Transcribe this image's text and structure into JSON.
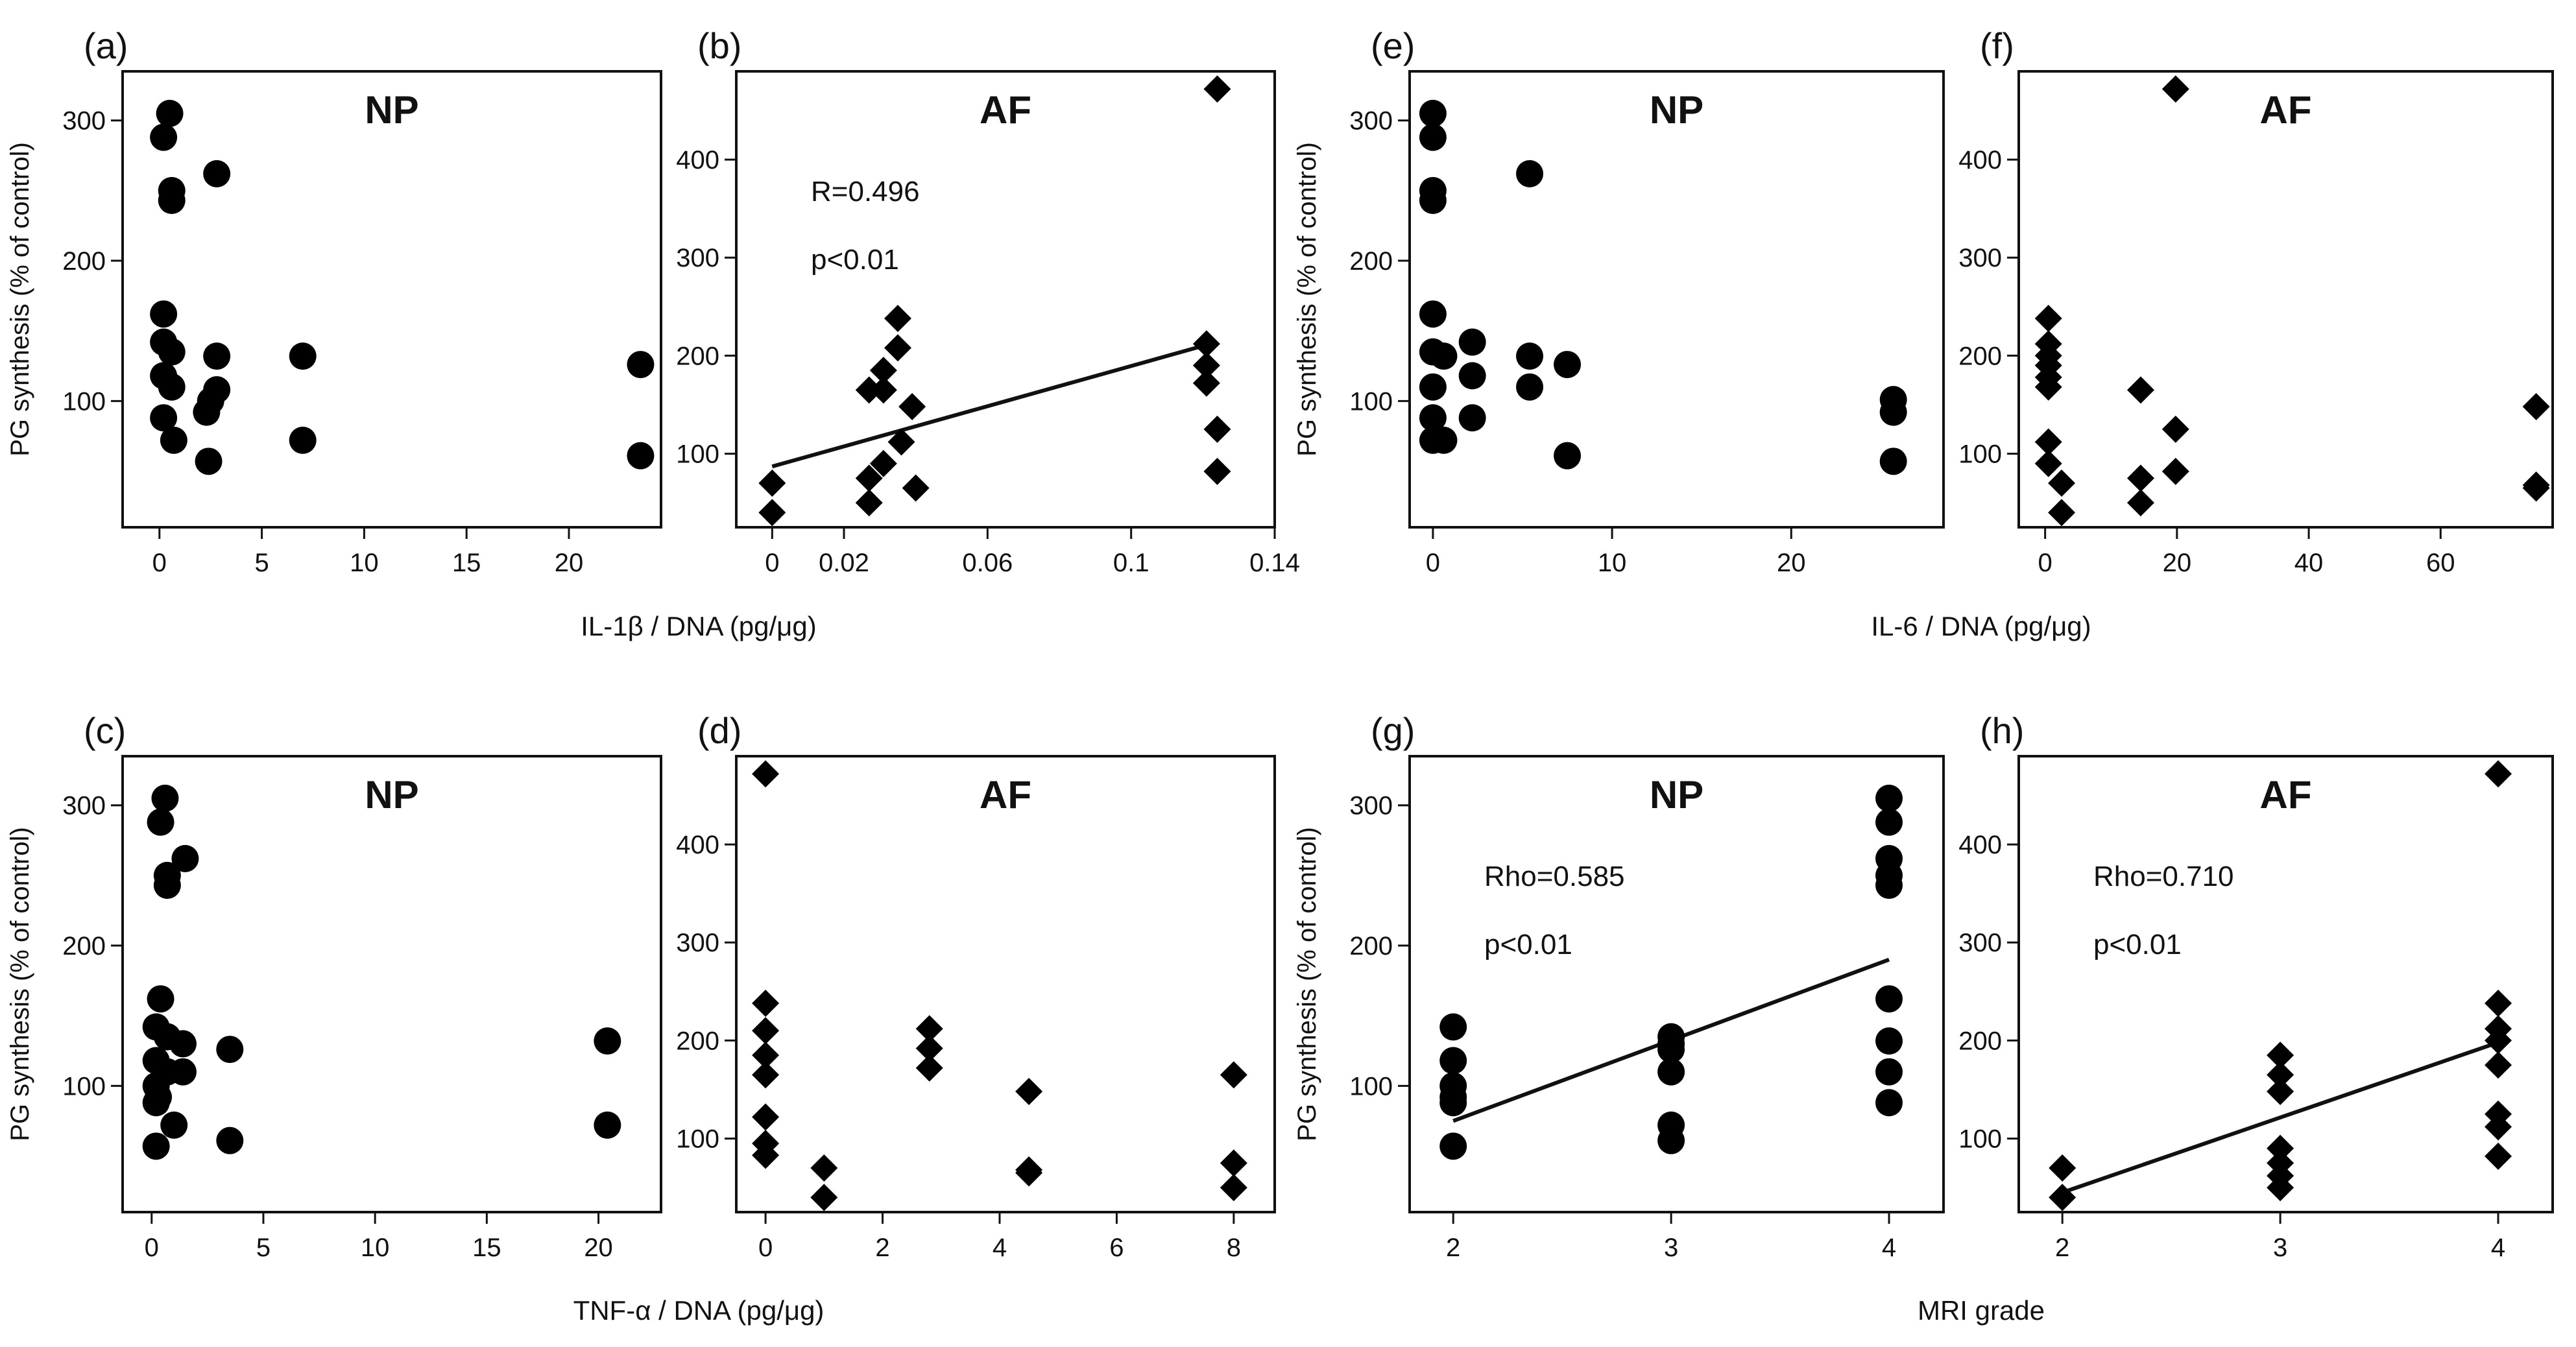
{
  "figure": {
    "shared_xlabels": [
      "IL-1β / DNA (pg/μg)",
      "IL-6 / DNA (pg/μg)",
      "TNF-α / DNA (pg/μg)",
      "MRI grade"
    ]
  },
  "chart_data": [
    {
      "id": "a",
      "panel_label": "(a)",
      "title": "NP",
      "type": "scatter",
      "marker": "circle",
      "xlabel": "IL-1β / DNA (pg/μg)",
      "ylabel": "PG synthesis (% of control)",
      "xlim": [
        -1.8,
        24.5
      ],
      "ylim": [
        10,
        335
      ],
      "xticks": [
        0,
        5,
        10,
        15,
        20
      ],
      "xtick_labels": [
        "0",
        "5",
        "10",
        "15",
        "20"
      ],
      "yticks": [
        100,
        200,
        300
      ],
      "ytick_labels": [
        "100",
        "200",
        "300"
      ],
      "points": [
        [
          0.5,
          305
        ],
        [
          0.2,
          288
        ],
        [
          0.6,
          250
        ],
        [
          0.6,
          243
        ],
        [
          2.8,
          262
        ],
        [
          0.2,
          162
        ],
        [
          0.2,
          142
        ],
        [
          0.6,
          135
        ],
        [
          2.8,
          132
        ],
        [
          0.2,
          118
        ],
        [
          0.6,
          110
        ],
        [
          2.8,
          108
        ],
        [
          2.5,
          100
        ],
        [
          2.3,
          92
        ],
        [
          0.2,
          88
        ],
        [
          0.7,
          72
        ],
        [
          2.4,
          57
        ],
        [
          7.0,
          132
        ],
        [
          7.0,
          72
        ],
        [
          23.5,
          126
        ],
        [
          23.5,
          61
        ]
      ],
      "annotations": []
    },
    {
      "id": "b",
      "panel_label": "(b)",
      "title": "AF",
      "type": "scatter",
      "marker": "diamond",
      "xlabel": "IL-1β / DNA (pg/μg)",
      "ylabel": "",
      "xlim": [
        -0.01,
        0.14
      ],
      "ylim": [
        25,
        490
      ],
      "xticks": [
        0,
        0.02,
        0.06,
        0.1,
        0.14
      ],
      "xtick_labels": [
        "0",
        "0.02",
        "0.06",
        "0.1",
        "0.14"
      ],
      "yticks": [
        100,
        200,
        300,
        400
      ],
      "ytick_labels": [
        "100",
        "200",
        "300",
        "400"
      ],
      "points": [
        [
          0,
          70
        ],
        [
          0,
          40
        ],
        [
          0.027,
          165
        ],
        [
          0.027,
          75
        ],
        [
          0.027,
          50
        ],
        [
          0.031,
          185
        ],
        [
          0.031,
          165
        ],
        [
          0.031,
          90
        ],
        [
          0.035,
          238
        ],
        [
          0.035,
          208
        ],
        [
          0.036,
          112
        ],
        [
          0.039,
          148
        ],
        [
          0.04,
          65
        ],
        [
          0.121,
          212
        ],
        [
          0.121,
          190
        ],
        [
          0.121,
          172
        ],
        [
          0.124,
          125
        ],
        [
          0.124,
          82
        ],
        [
          0.124,
          472
        ]
      ],
      "regression": {
        "x": [
          0,
          0.122
        ],
        "y": [
          87,
          212
        ]
      },
      "annotations": [
        "R=0.496",
        "p<0.01"
      ]
    },
    {
      "id": "e",
      "panel_label": "(e)",
      "title": "NP",
      "type": "scatter",
      "marker": "circle",
      "xlabel": "IL-6 / DNA (pg/μg)",
      "ylabel": "PG synthesis (% of control)",
      "xlim": [
        -1.3,
        28.5
      ],
      "ylim": [
        10,
        335
      ],
      "xticks": [
        0,
        10,
        20
      ],
      "xtick_labels": [
        "0",
        "10",
        "20"
      ],
      "yticks": [
        100,
        200,
        300
      ],
      "ytick_labels": [
        "100",
        "200",
        "300"
      ],
      "points": [
        [
          0,
          305
        ],
        [
          0,
          288
        ],
        [
          0,
          250
        ],
        [
          0,
          243
        ],
        [
          0,
          162
        ],
        [
          0,
          135
        ],
        [
          0,
          110
        ],
        [
          0,
          88
        ],
        [
          0,
          72
        ],
        [
          0.6,
          132
        ],
        [
          0.6,
          72
        ],
        [
          2.2,
          142
        ],
        [
          2.2,
          118
        ],
        [
          2.2,
          88
        ],
        [
          5.4,
          262
        ],
        [
          5.4,
          132
        ],
        [
          5.4,
          110
        ],
        [
          7.5,
          126
        ],
        [
          7.5,
          61
        ],
        [
          25.7,
          101
        ],
        [
          25.7,
          92
        ],
        [
          25.7,
          57
        ]
      ],
      "annotations": []
    },
    {
      "id": "f",
      "panel_label": "(f)",
      "title": "AF",
      "type": "scatter",
      "marker": "diamond",
      "xlabel": "IL-6 / DNA (pg/μg)",
      "ylabel": "",
      "xlim": [
        -4,
        77
      ],
      "ylim": [
        25,
        490
      ],
      "xticks": [
        0,
        20,
        40,
        60
      ],
      "xtick_labels": [
        "0",
        "20",
        "40",
        "60"
      ],
      "yticks": [
        100,
        200,
        300,
        400
      ],
      "ytick_labels": [
        "100",
        "200",
        "300",
        "400"
      ],
      "points": [
        [
          0.5,
          238
        ],
        [
          0.5,
          212
        ],
        [
          0.5,
          200
        ],
        [
          0.5,
          190
        ],
        [
          0.5,
          178
        ],
        [
          0.5,
          168
        ],
        [
          0.5,
          112
        ],
        [
          0.5,
          90
        ],
        [
          2.5,
          70
        ],
        [
          2.5,
          40
        ],
        [
          14.5,
          165
        ],
        [
          14.5,
          75
        ],
        [
          14.5,
          50
        ],
        [
          19.8,
          472
        ],
        [
          19.8,
          125
        ],
        [
          19.8,
          82
        ],
        [
          74.5,
          148
        ],
        [
          74.5,
          68
        ],
        [
          74.5,
          65
        ]
      ],
      "annotations": []
    },
    {
      "id": "c",
      "panel_label": "(c)",
      "title": "NP",
      "type": "scatter",
      "marker": "circle",
      "xlabel": "TNF-α / DNA (pg/μg)",
      "ylabel": "PG synthesis (% of control)",
      "xlim": [
        -1.3,
        22.8
      ],
      "ylim": [
        10,
        335
      ],
      "xticks": [
        0,
        5,
        10,
        15,
        20
      ],
      "xtick_labels": [
        "0",
        "5",
        "10",
        "15",
        "20"
      ],
      "yticks": [
        100,
        200,
        300
      ],
      "ytick_labels": [
        "100",
        "200",
        "300"
      ],
      "points": [
        [
          0.6,
          305
        ],
        [
          0.4,
          288
        ],
        [
          0.7,
          250
        ],
        [
          0.7,
          243
        ],
        [
          1.5,
          262
        ],
        [
          0.4,
          162
        ],
        [
          0.2,
          142
        ],
        [
          0.7,
          135
        ],
        [
          1.4,
          130
        ],
        [
          0.2,
          118
        ],
        [
          0.7,
          110
        ],
        [
          1.4,
          110
        ],
        [
          0.2,
          100
        ],
        [
          0.3,
          92
        ],
        [
          0.2,
          88
        ],
        [
          1.0,
          72
        ],
        [
          0.2,
          57
        ],
        [
          3.5,
          126
        ],
        [
          3.5,
          61
        ],
        [
          20.4,
          132
        ],
        [
          20.4,
          72
        ]
      ],
      "annotations": []
    },
    {
      "id": "d",
      "panel_label": "(d)",
      "title": "AF",
      "type": "scatter",
      "marker": "diamond",
      "xlabel": "TNF-α / DNA (pg/μg)",
      "ylabel": "",
      "xlim": [
        -0.5,
        8.7
      ],
      "ylim": [
        25,
        490
      ],
      "xticks": [
        0,
        2,
        4,
        6,
        8
      ],
      "xtick_labels": [
        "0",
        "2",
        "4",
        "6",
        "8"
      ],
      "yticks": [
        100,
        200,
        300,
        400
      ],
      "ytick_labels": [
        "100",
        "200",
        "300",
        "400"
      ],
      "points": [
        [
          0,
          472
        ],
        [
          0,
          238
        ],
        [
          0,
          210
        ],
        [
          0,
          185
        ],
        [
          0,
          165
        ],
        [
          0,
          122
        ],
        [
          0,
          95
        ],
        [
          0,
          83
        ],
        [
          1.0,
          70
        ],
        [
          1.0,
          40
        ],
        [
          2.8,
          212
        ],
        [
          2.8,
          192
        ],
        [
          2.8,
          172
        ],
        [
          4.5,
          148
        ],
        [
          4.5,
          65
        ],
        [
          4.5,
          68
        ],
        [
          8.0,
          165
        ],
        [
          8.0,
          75
        ],
        [
          8.0,
          50
        ]
      ],
      "annotations": []
    },
    {
      "id": "g",
      "panel_label": "(g)",
      "title": "NP",
      "type": "scatter",
      "marker": "circle",
      "xlabel": "MRI grade",
      "ylabel": "PG synthesis (% of control)",
      "xlim": [
        1.8,
        4.25
      ],
      "ylim": [
        10,
        335
      ],
      "xticks": [
        2,
        3,
        4
      ],
      "xtick_labels": [
        "2",
        "3",
        "4"
      ],
      "yticks": [
        100,
        200,
        300
      ],
      "ytick_labels": [
        "100",
        "200",
        "300"
      ],
      "points": [
        [
          2,
          142
        ],
        [
          2,
          118
        ],
        [
          2,
          100
        ],
        [
          2,
          92
        ],
        [
          2,
          88
        ],
        [
          2,
          57
        ],
        [
          3,
          135
        ],
        [
          3,
          130
        ],
        [
          3,
          126
        ],
        [
          3,
          110
        ],
        [
          3,
          72
        ],
        [
          3,
          61
        ],
        [
          4,
          305
        ],
        [
          4,
          288
        ],
        [
          4,
          262
        ],
        [
          4,
          250
        ],
        [
          4,
          243
        ],
        [
          4,
          162
        ],
        [
          4,
          132
        ],
        [
          4,
          110
        ],
        [
          4,
          88
        ]
      ],
      "regression": {
        "x": [
          2,
          4
        ],
        "y": [
          75,
          190
        ]
      },
      "annotations": [
        "Rho=0.585",
        "p<0.01"
      ]
    },
    {
      "id": "h",
      "panel_label": "(h)",
      "title": "AF",
      "type": "scatter",
      "marker": "diamond",
      "xlabel": "MRI grade",
      "ylabel": "",
      "xlim": [
        1.8,
        4.25
      ],
      "ylim": [
        25,
        490
      ],
      "xticks": [
        2,
        3,
        4
      ],
      "xtick_labels": [
        "2",
        "3",
        "4"
      ],
      "yticks": [
        100,
        200,
        300,
        400
      ],
      "ytick_labels": [
        "100",
        "200",
        "300",
        "400"
      ],
      "points": [
        [
          2,
          70
        ],
        [
          2,
          40
        ],
        [
          3,
          185
        ],
        [
          3,
          165
        ],
        [
          3,
          148
        ],
        [
          3,
          90
        ],
        [
          3,
          75
        ],
        [
          3,
          62
        ],
        [
          3,
          50
        ],
        [
          4,
          472
        ],
        [
          4,
          238
        ],
        [
          4,
          212
        ],
        [
          4,
          200
        ],
        [
          4,
          175
        ],
        [
          4,
          125
        ],
        [
          4,
          112
        ],
        [
          4,
          82
        ]
      ],
      "regression": {
        "x": [
          2,
          4
        ],
        "y": [
          45,
          198
        ]
      },
      "annotations": [
        "Rho=0.710",
        "p<0.01"
      ]
    }
  ]
}
